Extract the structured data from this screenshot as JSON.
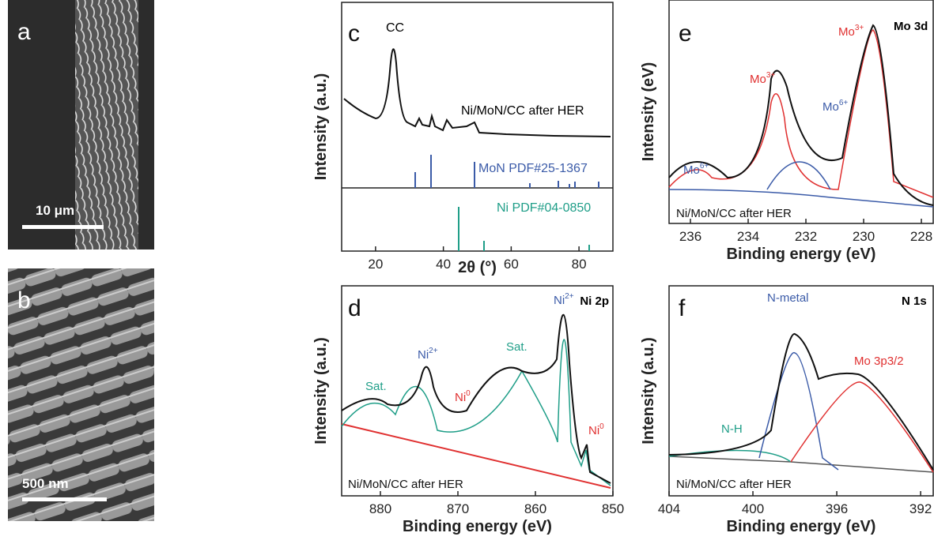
{
  "figure": {
    "panels": [
      {
        "label": "a",
        "scale_bar": "10 μm"
      },
      {
        "label": "b",
        "scale_bar": "500 nm"
      },
      {
        "label": "c",
        "x_label": "2θ (°)",
        "y_label": "Intensity (a.u.)",
        "xlim": [
          10,
          90
        ],
        "xticks": [
          20,
          40,
          60,
          80
        ],
        "annotations": [
          "CC",
          "Ni/MoN/CC after HER",
          "MoN PDF#25-1367",
          "Ni PDF#04-0850"
        ]
      },
      {
        "label": "d",
        "title": "Ni 2p",
        "x_label": "Binding energy (eV)",
        "y_label": "Intensity (a.u.)",
        "xlim": [
          885,
          850
        ],
        "xticks": [
          880,
          870,
          860,
          850
        ],
        "annotations": [
          "Sat.",
          "Sat.",
          "Ni/MoN/CC after HER"
        ],
        "peaks": [
          {
            "base": "Ni",
            "sup": "2+"
          },
          {
            "base": "Ni",
            "sup": "0"
          },
          {
            "base": "Ni",
            "sup": "2+"
          },
          {
            "base": "Ni",
            "sup": "0"
          }
        ]
      },
      {
        "label": "e",
        "title": "Mo 3d",
        "x_label": "Binding energy (eV)",
        "y_label": "Intensity (eV)",
        "xlim": [
          236.74,
          227.59
        ],
        "xticks": [
          236,
          234,
          232,
          230,
          228
        ],
        "annotations": [
          "Ni/MoN/CC after HER"
        ],
        "peaks": [
          {
            "base": "Mo",
            "sup": "6+"
          },
          {
            "base": "Mo",
            "sup": "3+"
          },
          {
            "base": "Mo",
            "sup": "6+"
          },
          {
            "base": "Mo",
            "sup": "3+"
          }
        ]
      },
      {
        "label": "f",
        "title": "N 1s",
        "x_label": "Binding energy (eV)",
        "y_label": "Intensity (a.u.)",
        "xlim": [
          404,
          391.4
        ],
        "xticks": [
          404,
          400,
          396,
          392
        ],
        "annotations": [
          "N-metal",
          "Mo 3p3/2",
          "N-H",
          "Ni/MoN/CC after HER"
        ]
      }
    ]
  }
}
